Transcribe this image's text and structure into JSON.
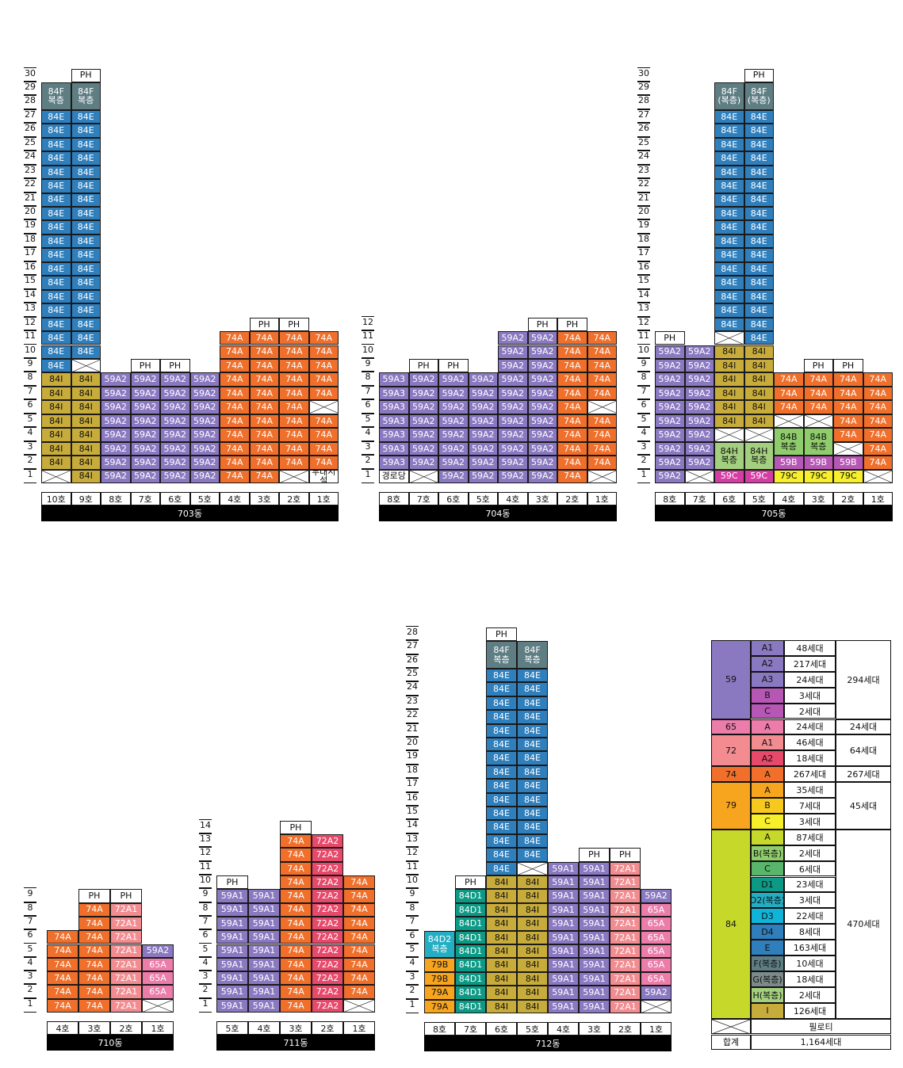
{
  "colors": {
    "84F": "#5f7e83",
    "84E": "#2f7fbd",
    "84I": "#c8ac3b",
    "59A2": "#8a78c1",
    "59A3": "#8a78c1",
    "59A1": "#8a78c1",
    "74A": "#ef6f2b",
    "72A1": "#f28c90",
    "72A2": "#e6496a",
    "65A": "#ec7caa",
    "84H": "#a3cf7f",
    "84B": "#8fcc6b",
    "59B": "#b657b5",
    "59C": "#d63da4",
    "79C": "#f6ef2a",
    "79B": "#f7a51e",
    "79A": "#f7a51e",
    "84D1": "#0c9a86",
    "84D2": "#24aec3"
  },
  "buildings": [
    {
      "name": "703동",
      "units": [
        "10호",
        "9호",
        "8호",
        "7호",
        "6호",
        "5호",
        "4호",
        "3호",
        "2호",
        "1호"
      ],
      "floors": [
        "1",
        "2",
        "3",
        "4",
        "5",
        "6",
        "7",
        "8",
        "9",
        "10",
        "11",
        "12",
        "13",
        "14",
        "15",
        "16",
        "17",
        "18",
        "19",
        "20",
        "21",
        "22",
        "23",
        "24",
        "25",
        "26",
        "27",
        "28",
        "29",
        "30"
      ],
      "columns": [
        [
          "X",
          "84I",
          "84I",
          "84I",
          "84I",
          "84I",
          "84I",
          "84I",
          "84E",
          "84E",
          "84E",
          "84E",
          "84E",
          "84E",
          "84E",
          "84E",
          "84E",
          "84E",
          "84E",
          "84E",
          "84E",
          "84E",
          "84E",
          "84E",
          "84E",
          "84E",
          "84E",
          "84F\n복층",
          ""
        ],
        [
          "84I",
          "84I",
          "84I",
          "84I",
          "84I",
          "84I",
          "84I",
          "84I",
          "X",
          "84E",
          "84E",
          "84E",
          "84E",
          "84E",
          "84E",
          "84E",
          "84E",
          "84E",
          "84E",
          "84E",
          "84E",
          "84E",
          "84E",
          "84E",
          "84E",
          "84E",
          "84E",
          "84F\n복층",
          "",
          "PH"
        ],
        [
          "59A2",
          "59A2",
          "59A2",
          "59A2",
          "59A2",
          "59A2",
          "59A2",
          "59A2"
        ],
        [
          "59A2",
          "59A2",
          "59A2",
          "59A2",
          "59A2",
          "59A2",
          "59A2",
          "59A2",
          "PH"
        ],
        [
          "59A2",
          "59A2",
          "59A2",
          "59A2",
          "59A2",
          "59A2",
          "59A2",
          "59A2",
          "PH"
        ],
        [
          "59A2",
          "59A2",
          "59A2",
          "59A2",
          "59A2",
          "59A2",
          "59A2",
          "59A2"
        ],
        [
          "74A",
          "74A",
          "74A",
          "74A",
          "74A",
          "74A",
          "74A",
          "74A",
          "74A",
          "74A",
          "74A"
        ],
        [
          "74A",
          "74A",
          "74A",
          "74A",
          "74A",
          "74A",
          "74A",
          "74A",
          "74A",
          "74A",
          "74A",
          "PH"
        ],
        [
          "X",
          "74A",
          "74A",
          "74A",
          "74A",
          "74A",
          "74A",
          "74A",
          "74A",
          "74A",
          "74A",
          "PH"
        ],
        [
          "부대시설",
          "74A",
          "74A",
          "74A",
          "74A",
          "X",
          "74A",
          "74A",
          "74A",
          "74A",
          "74A"
        ]
      ]
    },
    {
      "name": "704동",
      "units": [
        "8호",
        "7호",
        "6호",
        "5호",
        "4호",
        "3호",
        "2호",
        "1호"
      ],
      "floors": [
        "1",
        "2",
        "3",
        "4",
        "5",
        "6",
        "7",
        "8",
        "9",
        "10",
        "11",
        "12"
      ],
      "columns": [
        [
          "경로당",
          "59A3",
          "59A3",
          "59A3",
          "59A3",
          "59A3",
          "59A3",
          "59A3"
        ],
        [
          "X",
          "59A2",
          "59A2",
          "59A2",
          "59A2",
          "59A2",
          "59A2",
          "59A2",
          "PH"
        ],
        [
          "59A2",
          "59A2",
          "59A2",
          "59A2",
          "59A2",
          "59A2",
          "59A2",
          "59A2",
          "PH"
        ],
        [
          "59A2",
          "59A2",
          "59A2",
          "59A2",
          "59A2",
          "59A2",
          "59A2",
          "59A2"
        ],
        [
          "59A2",
          "59A2",
          "59A2",
          "59A2",
          "59A2",
          "59A2",
          "59A2",
          "59A2",
          "59A2",
          "59A2",
          "59A2"
        ],
        [
          "59A2",
          "59A2",
          "59A2",
          "59A2",
          "59A2",
          "59A2",
          "59A2",
          "59A2",
          "59A2",
          "59A2",
          "59A2",
          "PH"
        ],
        [
          "74A",
          "74A",
          "74A",
          "74A",
          "74A",
          "74A",
          "74A",
          "74A",
          "74A",
          "74A",
          "74A",
          "PH"
        ],
        [
          "X",
          "74A",
          "74A",
          "74A",
          "74A",
          "X",
          "74A",
          "74A",
          "74A",
          "74A",
          "74A"
        ]
      ]
    },
    {
      "name": "705동",
      "units": [
        "8호",
        "7호",
        "6호",
        "5호",
        "4호",
        "3호",
        "2호",
        "1호"
      ],
      "floors": [
        "1",
        "2",
        "3",
        "4",
        "5",
        "6",
        "7",
        "8",
        "9",
        "10",
        "11",
        "12",
        "13",
        "14",
        "15",
        "16",
        "17",
        "18",
        "19",
        "20",
        "21",
        "22",
        "23",
        "24",
        "25",
        "26",
        "27",
        "28",
        "29",
        "30"
      ],
      "columns": [
        [
          "59A2",
          "59A2",
          "59A2",
          "59A2",
          "59A2",
          "59A2",
          "59A2",
          "59A2",
          "59A2",
          "59A2",
          "PH"
        ],
        [
          "X",
          "59A2",
          "59A2",
          "59A2",
          "59A2",
          "59A2",
          "59A2",
          "59A2",
          "59A2",
          "59A2"
        ],
        [
          "59C",
          "84H\n복층",
          "",
          "X",
          "84I",
          "84I",
          "84I",
          "84I",
          "84I",
          "84I",
          "X",
          "84E",
          "84E",
          "84E",
          "84E",
          "84E",
          "84E",
          "84E",
          "84E",
          "84E",
          "84E",
          "84E",
          "84E",
          "84E",
          "84E",
          "84E",
          "84E",
          "84F\n(복층)",
          ""
        ],
        [
          "59C",
          "84H\n복층",
          "",
          "X",
          "84I",
          "84I",
          "84I",
          "84I",
          "84I",
          "84I",
          "84E",
          "84E",
          "84E",
          "84E",
          "84E",
          "84E",
          "84E",
          "84E",
          "84E",
          "84E",
          "84E",
          "84E",
          "84E",
          "84E",
          "84E",
          "84E",
          "84E",
          "84F\n(복층)",
          "",
          "PH"
        ],
        [
          "79C",
          "59B",
          "84B\n복층",
          "",
          "X",
          "74A",
          "74A",
          "74A"
        ],
        [
          "79C",
          "59B",
          "84B\n복층",
          "",
          "X",
          "74A",
          "74A",
          "74A",
          "PH"
        ],
        [
          "79C",
          "59B",
          "X",
          "74A",
          "74A",
          "74A",
          "74A",
          "74A",
          "PH"
        ],
        [
          "X",
          "74A",
          "74A",
          "74A",
          "74A",
          "74A",
          "74A",
          "74A"
        ]
      ]
    },
    {
      "name": "710동",
      "units": [
        "4호",
        "3호",
        "2호",
        "1호"
      ],
      "floors": [
        "1",
        "2",
        "3",
        "4",
        "5",
        "6",
        "7",
        "8",
        "9"
      ],
      "columns": [
        [
          "74A",
          "74A",
          "74A",
          "74A",
          "74A",
          "74A"
        ],
        [
          "74A",
          "74A",
          "74A",
          "74A",
          "74A",
          "74A",
          "74A",
          "74A",
          "PH"
        ],
        [
          "72A1",
          "72A1",
          "72A1",
          "72A1",
          "72A1",
          "72A1",
          "72A1",
          "72A1",
          "PH"
        ],
        [
          "X",
          "65A",
          "65A",
          "65A",
          "59A2"
        ]
      ]
    },
    {
      "name": "711동",
      "units": [
        "5호",
        "4호",
        "3호",
        "2호",
        "1호"
      ],
      "floors": [
        "1",
        "2",
        "3",
        "4",
        "5",
        "6",
        "7",
        "8",
        "9",
        "10",
        "11",
        "12",
        "13",
        "14"
      ],
      "columns": [
        [
          "59A1",
          "59A1",
          "59A1",
          "59A1",
          "59A1",
          "59A1",
          "59A1",
          "59A1",
          "59A1",
          "PH"
        ],
        [
          "59A1",
          "59A1",
          "59A1",
          "59A1",
          "59A1",
          "59A1",
          "59A1",
          "59A1",
          "59A1"
        ],
        [
          "74A",
          "74A",
          "74A",
          "74A",
          "74A",
          "74A",
          "74A",
          "74A",
          "74A",
          "74A",
          "74A",
          "74A",
          "74A",
          "PH"
        ],
        [
          "72A2",
          "72A2",
          "72A2",
          "72A2",
          "72A2",
          "72A2",
          "72A2",
          "72A2",
          "72A2",
          "72A2",
          "72A2",
          "72A2",
          "72A2"
        ],
        [
          "X",
          "74A",
          "74A",
          "74A",
          "74A",
          "74A",
          "74A",
          "74A",
          "74A",
          "74A"
        ]
      ]
    },
    {
      "name": "712동",
      "units": [
        "8호",
        "7호",
        "6호",
        "5호",
        "4호",
        "3호",
        "2호",
        "1호"
      ],
      "floors": [
        "1",
        "2",
        "3",
        "4",
        "5",
        "6",
        "7",
        "8",
        "9",
        "10",
        "11",
        "12",
        "13",
        "14",
        "15",
        "16",
        "17",
        "18",
        "19",
        "20",
        "21",
        "22",
        "23",
        "24",
        "25",
        "26",
        "27",
        "28"
      ],
      "columns": [
        [
          "79A",
          "79A",
          "79B",
          "79B",
          "84D2\n복층",
          ""
        ],
        [
          "84D1",
          "84D1",
          "84D1",
          "84D1",
          "84D1",
          "84D1",
          "84D1",
          "84D1",
          "84D1",
          "PH"
        ],
        [
          "84I",
          "84I",
          "84I",
          "84I",
          "84I",
          "84I",
          "84I",
          "84I",
          "84I",
          "84I",
          "84E",
          "84E",
          "84E",
          "84E",
          "84E",
          "84E",
          "84E",
          "84E",
          "84E",
          "84E",
          "84E",
          "84E",
          "84E",
          "84E",
          "84E",
          "84F\n복층",
          "",
          "PH"
        ],
        [
          "84I",
          "84I",
          "84I",
          "84I",
          "84I",
          "84I",
          "84I",
          "84I",
          "84I",
          "84I",
          "X",
          "84E",
          "84E",
          "84E",
          "84E",
          "84E",
          "84E",
          "84E",
          "84E",
          "84E",
          "84E",
          "84E",
          "84E",
          "84E",
          "84E",
          "84F\n복층",
          ""
        ],
        [
          "59A1",
          "59A1",
          "59A1",
          "59A1",
          "59A1",
          "59A1",
          "59A1",
          "59A1",
          "59A1",
          "59A1",
          "59A1"
        ],
        [
          "59A1",
          "59A1",
          "59A1",
          "59A1",
          "59A1",
          "59A1",
          "59A1",
          "59A1",
          "59A1",
          "59A1",
          "59A1",
          "PH"
        ],
        [
          "72A1",
          "72A1",
          "72A1",
          "72A1",
          "72A1",
          "72A1",
          "72A1",
          "72A1",
          "72A1",
          "72A1",
          "72A1",
          "PH"
        ],
        [
          "X",
          "59A2",
          "65A",
          "65A",
          "65A",
          "65A",
          "65A",
          "65A",
          "59A2"
        ]
      ]
    }
  ],
  "legend": {
    "rows": [
      {
        "size": "59",
        "type": "A1",
        "count": "48세대",
        "total": "294세대"
      },
      {
        "size": "",
        "type": "A2",
        "count": "217세대",
        "total": ""
      },
      {
        "size": "",
        "type": "A3",
        "count": "24세대",
        "total": ""
      },
      {
        "size": "",
        "type": "B",
        "count": "3세대",
        "total": ""
      },
      {
        "size": "",
        "type": "C",
        "count": "2세대",
        "total": ""
      },
      {
        "size": "65",
        "type": "A",
        "count": "24세대",
        "total": "24세대"
      },
      {
        "size": "72",
        "type": "A1",
        "count": "46세대",
        "total": "64세대"
      },
      {
        "size": "",
        "type": "A2",
        "count": "18세대",
        "total": ""
      },
      {
        "size": "74",
        "type": "A",
        "count": "267세대",
        "total": "267세대"
      },
      {
        "size": "79",
        "type": "A",
        "count": "35세대",
        "total": "45세대"
      },
      {
        "size": "",
        "type": "B",
        "count": "7세대",
        "total": ""
      },
      {
        "size": "",
        "type": "C",
        "count": "3세대",
        "total": ""
      },
      {
        "size": "84",
        "type": "A",
        "count": "87세대",
        "total": "470세대"
      },
      {
        "size": "",
        "type": "B(복층)",
        "count": "2세대",
        "total": ""
      },
      {
        "size": "",
        "type": "C",
        "count": "6세대",
        "total": ""
      },
      {
        "size": "",
        "type": "D1",
        "count": "23세대",
        "total": ""
      },
      {
        "size": "",
        "type": "D2(복층)",
        "count": "3세대",
        "total": ""
      },
      {
        "size": "",
        "type": "D3",
        "count": "22세대",
        "total": ""
      },
      {
        "size": "",
        "type": "D4",
        "count": "8세대",
        "total": ""
      },
      {
        "size": "",
        "type": "E",
        "count": "163세대",
        "total": ""
      },
      {
        "size": "",
        "type": "F(복층)",
        "count": "10세대",
        "total": ""
      },
      {
        "size": "",
        "type": "G(복층)",
        "count": "18세대",
        "total": ""
      },
      {
        "size": "",
        "type": "H(복층)",
        "count": "2세대",
        "total": ""
      },
      {
        "size": "",
        "type": "I",
        "count": "126세대",
        "total": ""
      }
    ],
    "piloti_label": "필로티",
    "sum_label": "합계",
    "sum_value": "1,164세대",
    "size_colors": {
      "59": "#8a78c1",
      "65": "#ec7caa",
      "72": "#f28c90",
      "74": "#ef6f2b",
      "79": "#f7a51e",
      "84": "#c6d92b"
    },
    "type_colors": [
      "#8a78c1",
      "#8a78c1",
      "#8a78c1",
      "#b657b5",
      "#b657b5",
      "#ec7caa",
      "#f28c90",
      "#e6496a",
      "#ef6f2b",
      "#f7a51e",
      "#f7c81e",
      "#f6ef2a",
      "#c6d92b",
      "#8fcc6b",
      "#58b56a",
      "#0c9a86",
      "#24aec3",
      "#10b4d8",
      "#2f7fbd",
      "#2f7fbd",
      "#5f7e83",
      "#7c8a8a",
      "#a3cf7f",
      "#c8ac3b"
    ]
  }
}
